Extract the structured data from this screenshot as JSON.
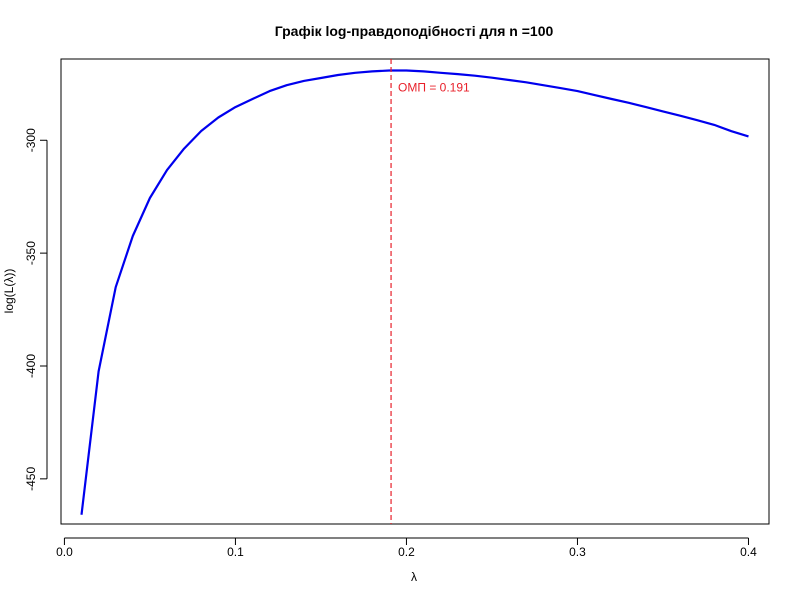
{
  "chart_data": {
    "type": "line",
    "title": "Графік log-правдоподібності для n =100",
    "xlabel": "λ",
    "ylabel": "log(L(λ))",
    "xlim": [
      -0.002,
      0.412
    ],
    "ylim": [
      -470,
      -264
    ],
    "x_ticks": [
      {
        "value": 0.0,
        "label": "0.0"
      },
      {
        "value": 0.1,
        "label": "0.1"
      },
      {
        "value": 0.2,
        "label": "0.2"
      },
      {
        "value": 0.3,
        "label": "0.3"
      },
      {
        "value": 0.4,
        "label": "0.4"
      }
    ],
    "y_ticks": [
      {
        "value": -300,
        "label": "-300"
      },
      {
        "value": -350,
        "label": "-350"
      },
      {
        "value": -400,
        "label": "-400"
      },
      {
        "value": -450,
        "label": "-450"
      }
    ],
    "grid": false,
    "series": [
      {
        "color": "#0000ee",
        "x": [
          0.01,
          0.02,
          0.03,
          0.04,
          0.05,
          0.06,
          0.07,
          0.08,
          0.09,
          0.1,
          0.11,
          0.12,
          0.13,
          0.14,
          0.15,
          0.16,
          0.17,
          0.18,
          0.19,
          0.2,
          0.21,
          0.22,
          0.23,
          0.24,
          0.25,
          0.26,
          0.27,
          0.28,
          0.29,
          0.3,
          0.31,
          0.32,
          0.33,
          0.34,
          0.35,
          0.36,
          0.37,
          0.38,
          0.39,
          0.4
        ],
        "y": [
          -465.9,
          -402.4,
          -365.1,
          -342.4,
          -325.6,
          -313.2,
          -303.7,
          -295.9,
          -289.9,
          -285.3,
          -281.7,
          -278.2,
          -275.6,
          -273.7,
          -272.4,
          -271.1,
          -270.1,
          -269.5,
          -269.1,
          -269.1,
          -269.5,
          -270.1,
          -270.7,
          -271.4,
          -272.3,
          -273.3,
          -274.3,
          -275.6,
          -276.9,
          -278.2,
          -280.0,
          -281.7,
          -283.4,
          -285.3,
          -287.2,
          -289.1,
          -291.1,
          -293.2,
          -296.0,
          -298.3
        ]
      }
    ],
    "vline": {
      "x": 0.191,
      "color": "#e8202a",
      "style": "dashed"
    },
    "annotation": {
      "text": "ОМП = 0.191",
      "x": 0.191,
      "y": -268.3,
      "color": "#e8202a"
    }
  }
}
